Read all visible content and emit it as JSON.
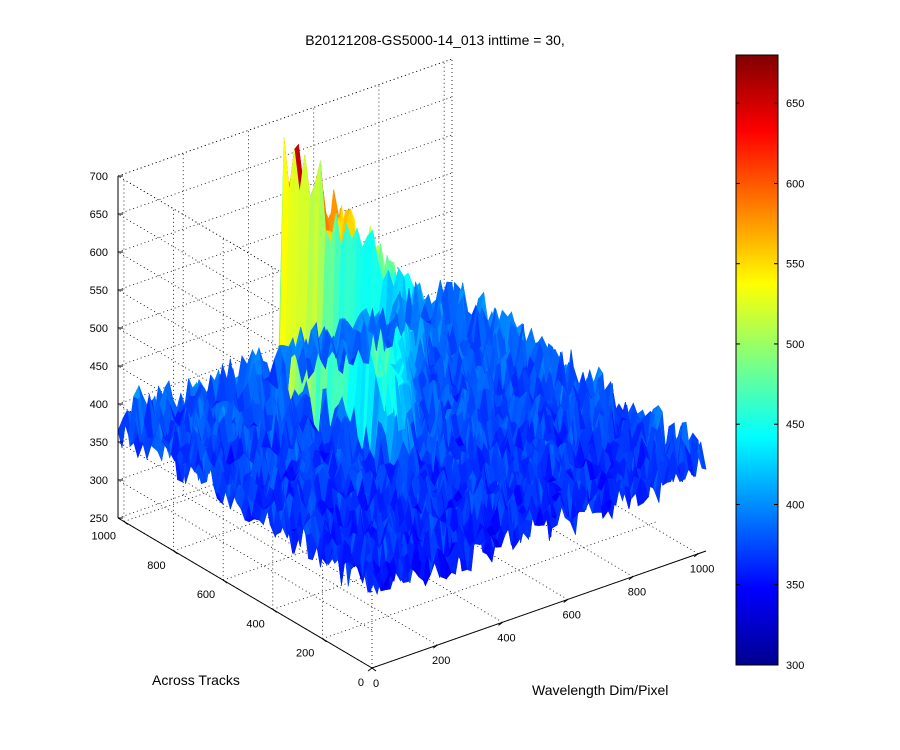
{
  "chart_data": {
    "type": "surface",
    "title": "B20121208-GS5000-14_013 inttime = 30,",
    "xlabel": "Wavelength Dim/Pixel",
    "ylabel": "Across Tracks",
    "zlabel": "",
    "x_ticks": [
      "0",
      "200",
      "400",
      "600",
      "800",
      "1000"
    ],
    "y_ticks": [
      "0",
      "200",
      "400",
      "600",
      "800",
      "1000"
    ],
    "z_ticks": [
      "250",
      "300",
      "350",
      "400",
      "450",
      "500",
      "550",
      "600",
      "650",
      "700"
    ],
    "x_range": [
      0,
      1024
    ],
    "y_range": [
      0,
      1024
    ],
    "z_range": [
      250,
      700
    ],
    "grid": true,
    "colormap": "jet",
    "colorbar": {
      "placement": "right",
      "range": [
        300,
        680
      ],
      "ticks": [
        "300",
        "350",
        "400",
        "450",
        "500",
        "550",
        "600",
        "650"
      ]
    },
    "surface_features": {
      "baseline_level": 375,
      "noise_amplitude": 35,
      "peak_region": {
        "shape": "triangle",
        "apex": {
          "wavelength": 440,
          "across_tracks": 950,
          "value": 660
        },
        "base_start": {
          "wavelength": 440,
          "across_tracks": 400,
          "value": 430
        },
        "tail_end": {
          "wavelength": 900,
          "across_tracks": 950,
          "value": 420
        }
      }
    }
  }
}
